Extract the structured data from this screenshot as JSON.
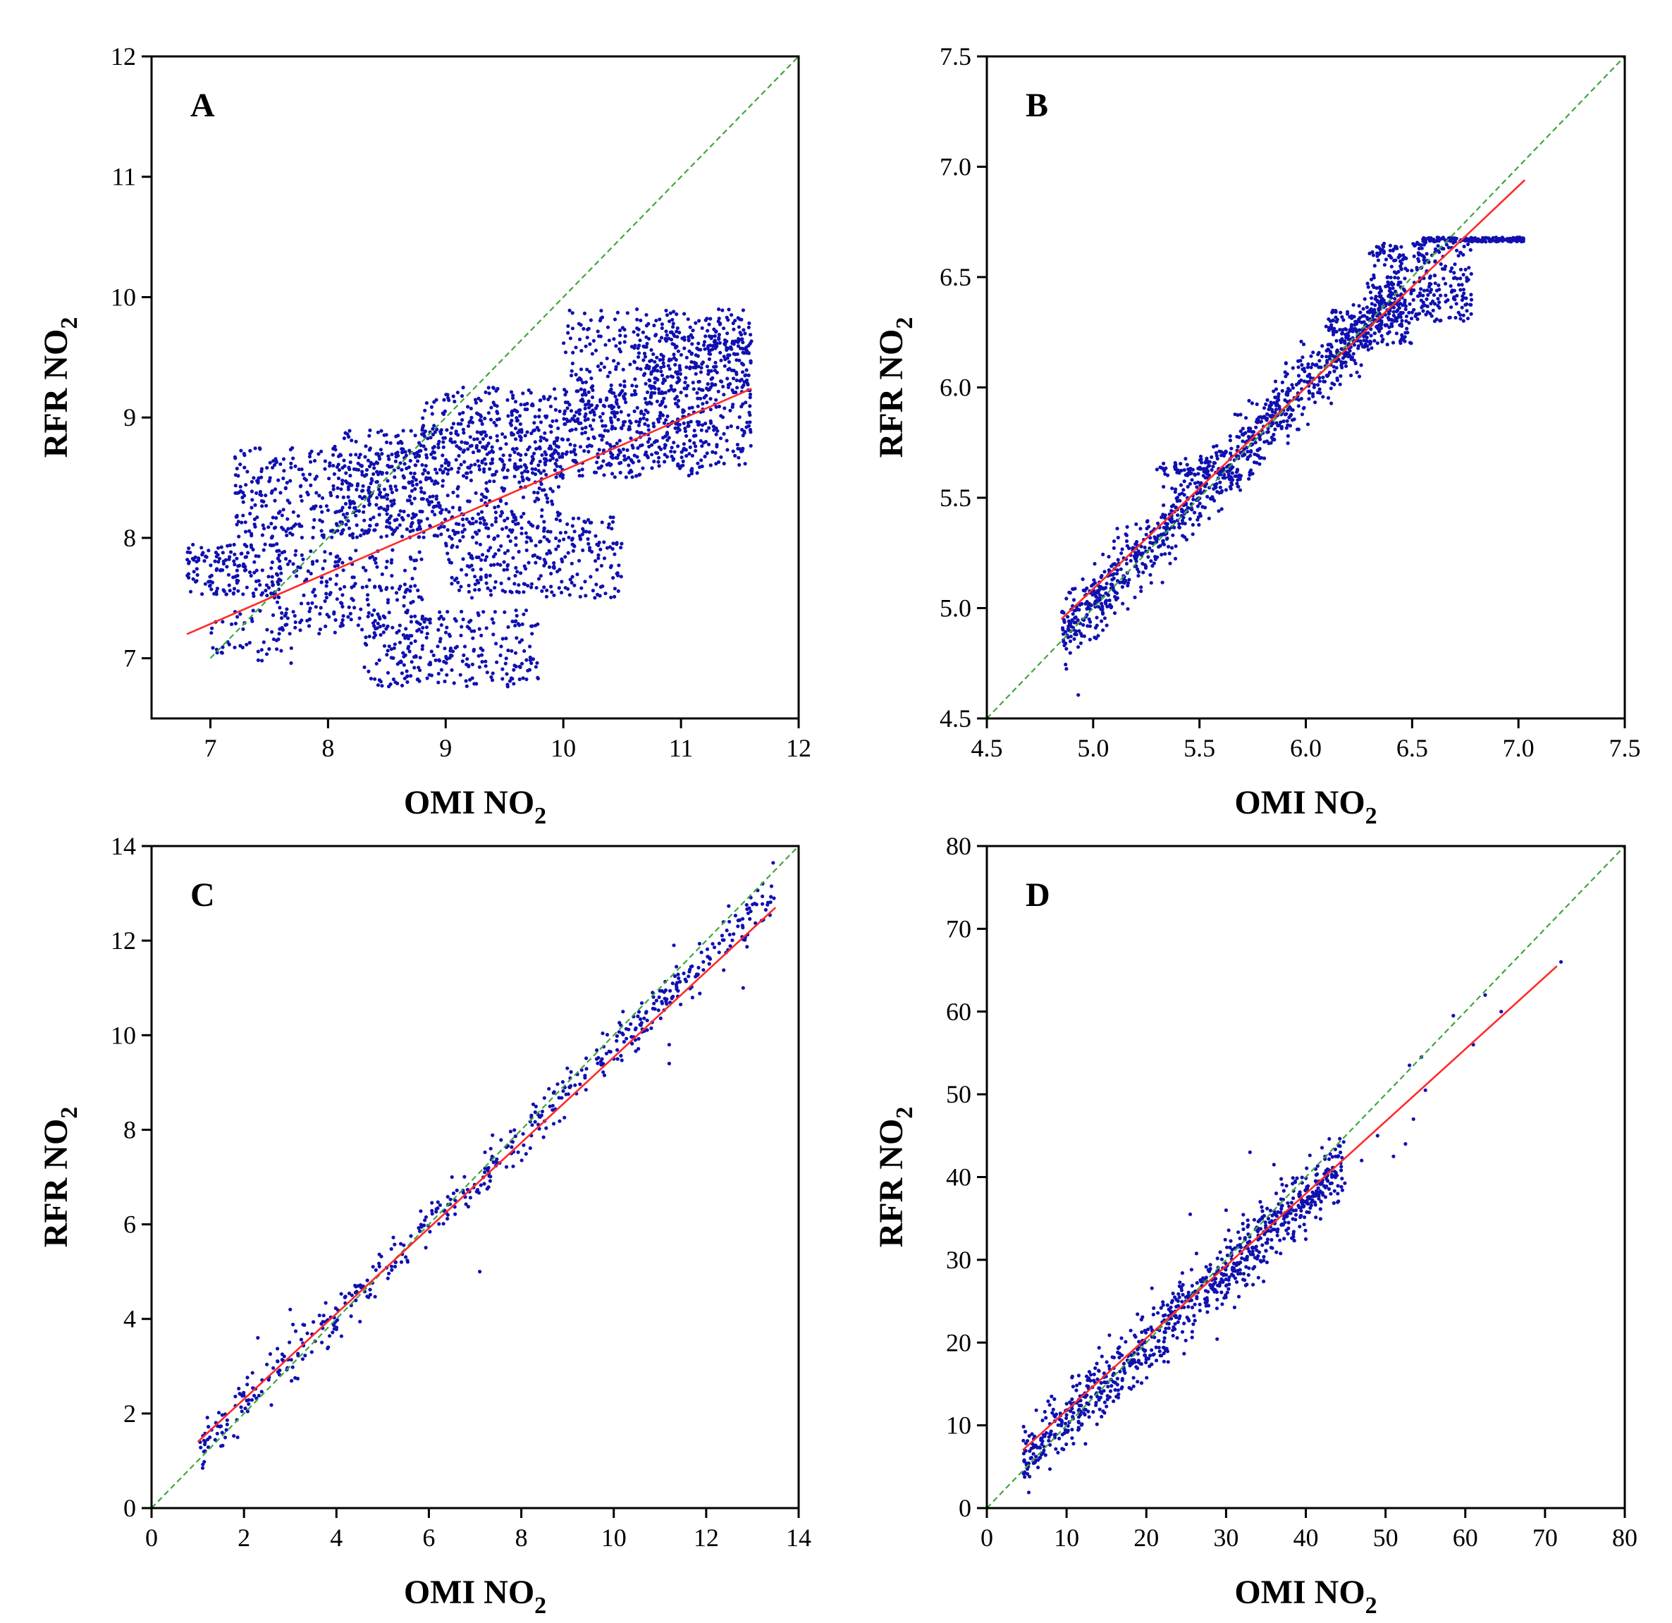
{
  "chart_data": [
    {
      "id": "A",
      "type": "scatter",
      "panel_label": "A",
      "xlabel": "OMI NO",
      "ylabel": "RFR NO",
      "label_subscript": "2",
      "xlim": [
        6.5,
        12
      ],
      "ylim": [
        6.5,
        12
      ],
      "xticks": [
        7,
        8,
        9,
        10,
        11,
        12
      ],
      "yticks": [
        7,
        8,
        9,
        10,
        11,
        12
      ],
      "tick_decimals": 0,
      "identity_line": {
        "from": [
          7.0,
          7.0
        ],
        "to": [
          12,
          12
        ],
        "color": "#3fa63f"
      },
      "fit_line": {
        "from": [
          6.8,
          7.2
        ],
        "to": [
          11.6,
          9.24
        ],
        "color": "#ff2a2a"
      },
      "point_color": "#1010b0",
      "point_clouds": [
        {
          "x": [
            6.8,
            7.6
          ],
          "y": [
            7.5,
            7.95
          ],
          "n": 160
        },
        {
          "x": [
            7.2,
            9.0
          ],
          "y": [
            8.0,
            8.75
          ],
          "n": 380
        },
        {
          "x": [
            8.0,
            10.0
          ],
          "y": [
            8.0,
            8.9
          ],
          "n": 420
        },
        {
          "x": [
            7.5,
            8.8
          ],
          "y": [
            7.2,
            7.9
          ],
          "n": 220
        },
        {
          "x": [
            8.8,
            11.2
          ],
          "y": [
            8.5,
            9.25
          ],
          "n": 520
        },
        {
          "x": [
            9.0,
            10.5
          ],
          "y": [
            7.5,
            8.2
          ],
          "n": 300
        },
        {
          "x": [
            10.0,
            11.6
          ],
          "y": [
            8.6,
            9.9
          ],
          "n": 520
        },
        {
          "x": [
            8.3,
            9.8
          ],
          "y": [
            6.75,
            7.4
          ],
          "n": 260
        },
        {
          "x": [
            7.0,
            7.7
          ],
          "y": [
            6.95,
            7.4
          ],
          "n": 50
        },
        {
          "x": [
            10.6,
            11.6
          ],
          "y": [
            9.2,
            9.75
          ],
          "n": 200
        }
      ]
    },
    {
      "id": "B",
      "type": "scatter",
      "panel_label": "B",
      "xlabel": "OMI NO",
      "ylabel": "RFR NO",
      "label_subscript": "2",
      "xlim": [
        4.5,
        7.5
      ],
      "ylim": [
        4.5,
        7.5
      ],
      "xticks": [
        4.5,
        5.0,
        5.5,
        6.0,
        6.5,
        7.0,
        7.5
      ],
      "yticks": [
        4.5,
        5.0,
        5.5,
        6.0,
        6.5,
        7.0,
        7.5
      ],
      "tick_decimals": 1,
      "identity_line": {
        "from": [
          4.5,
          4.5
        ],
        "to": [
          7.5,
          7.5
        ],
        "color": "#3fa63f"
      },
      "fit_line": {
        "from": [
          4.85,
          4.95
        ],
        "to": [
          7.03,
          6.94
        ],
        "color": "#ff2a2a"
      },
      "point_color": "#1010b0",
      "point_clouds": [
        {
          "x": [
            4.85,
            6.45
          ],
          "y": [
            4.88,
            6.45
          ],
          "n": 1100,
          "mode": "diagonal",
          "spread": 0.08
        },
        {
          "x": [
            6.3,
            6.78
          ],
          "y": [
            6.3,
            6.66
          ],
          "n": 300,
          "mode": "box"
        },
        {
          "x": [
            6.55,
            7.03
          ],
          "y": [
            6.66,
            6.68
          ],
          "n": 160,
          "mode": "box"
        },
        {
          "x": [
            5.3,
            5.65
          ],
          "y": [
            5.6,
            5.66
          ],
          "n": 50,
          "mode": "box"
        },
        {
          "x": [
            6.1,
            6.5
          ],
          "y": [
            6.2,
            6.35
          ],
          "n": 90,
          "mode": "box"
        }
      ]
    },
    {
      "id": "C",
      "type": "scatter",
      "panel_label": "C",
      "xlabel": "OMI NO",
      "ylabel": "RFR NO",
      "label_subscript": "2",
      "xlim": [
        0,
        14
      ],
      "ylim": [
        0,
        14
      ],
      "xticks": [
        0,
        2,
        4,
        6,
        8,
        10,
        12,
        14
      ],
      "yticks": [
        0,
        2,
        4,
        6,
        8,
        10,
        12,
        14
      ],
      "tick_decimals": 0,
      "identity_line": {
        "from": [
          0,
          0
        ],
        "to": [
          14,
          14
        ],
        "color": "#3fa63f"
      },
      "fit_line": {
        "from": [
          1.0,
          1.4
        ],
        "to": [
          13.5,
          12.7
        ],
        "color": "#ff2a2a"
      },
      "point_color": "#1010b0",
      "point_clouds": [
        {
          "x": [
            1.0,
            13.5
          ],
          "y": [
            1.3,
            13.0
          ],
          "n": 520,
          "mode": "diagonal",
          "spread": 0.25
        }
      ],
      "points": [
        [
          11.2,
          9.4
        ],
        [
          11.2,
          9.8
        ],
        [
          12.8,
          11.0
        ],
        [
          11.3,
          11.9
        ],
        [
          7.1,
          5.0
        ],
        [
          6.5,
          7.0
        ],
        [
          10.2,
          10.5
        ],
        [
          2.3,
          3.6
        ],
        [
          3.0,
          4.2
        ],
        [
          12.5,
          12.4
        ]
      ]
    },
    {
      "id": "D",
      "type": "scatter",
      "panel_label": "D",
      "xlabel": "OMI NO",
      "ylabel": "RFR NO",
      "label_subscript": "2",
      "xlim": [
        0,
        80
      ],
      "ylim": [
        0,
        80
      ],
      "xticks": [
        0,
        10,
        20,
        30,
        40,
        50,
        60,
        70,
        80
      ],
      "yticks": [
        0,
        10,
        20,
        30,
        40,
        50,
        60,
        70,
        80
      ],
      "tick_decimals": 0,
      "identity_line": {
        "from": [
          0,
          0
        ],
        "to": [
          80,
          80
        ],
        "color": "#3fa63f"
      },
      "fit_line": {
        "from": [
          4.5,
          7.0
        ],
        "to": [
          71.5,
          65.5
        ],
        "color": "#ff2a2a"
      },
      "point_color": "#1010b0",
      "point_clouds": [
        {
          "x": [
            4.5,
            45.0
          ],
          "y": [
            6.0,
            42.0
          ],
          "n": 900,
          "mode": "diagonal",
          "spread": 2.0
        }
      ],
      "points": [
        [
          33.0,
          43.0
        ],
        [
          36.0,
          41.5
        ],
        [
          25.5,
          35.5
        ],
        [
          30.0,
          36.0
        ],
        [
          51.0,
          42.5
        ],
        [
          52.5,
          44.0
        ],
        [
          53.5,
          47.0
        ],
        [
          55.0,
          50.5
        ],
        [
          53.0,
          53.5
        ],
        [
          58.5,
          59.5
        ],
        [
          61.0,
          56.0
        ],
        [
          64.5,
          60.0
        ],
        [
          72.0,
          66.0
        ],
        [
          47.0,
          42.0
        ],
        [
          44.0,
          38.0
        ],
        [
          49.0,
          45.0
        ],
        [
          54.5,
          54.5
        ],
        [
          62.5,
          62.0
        ],
        [
          40.0,
          32.5
        ],
        [
          42.5,
          40.0
        ]
      ]
    }
  ]
}
